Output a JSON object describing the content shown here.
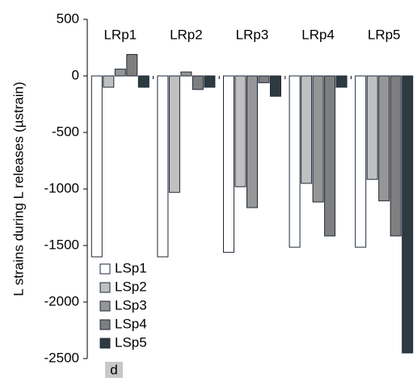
{
  "chart_data": {
    "type": "bar",
    "y_label": "L strains during L releases (µstrain)",
    "annotation": "d",
    "categories": [
      "LRp1",
      "LRp2",
      "LRp3",
      "LRp4",
      "LRp5"
    ],
    "series": [
      {
        "name": "LSp1",
        "color": "#ffffff",
        "values": [
          -1600,
          -1600,
          -1560,
          -1515,
          -1515
        ]
      },
      {
        "name": "LSp2",
        "color": "#c0c0c0",
        "values": [
          -100,
          -1030,
          -980,
          -950,
          -915
        ]
      },
      {
        "name": "LSp3",
        "color": "#969696",
        "values": [
          60,
          35,
          -1165,
          -1115,
          -1105
        ]
      },
      {
        "name": "LSp4",
        "color": "#7f7f7f",
        "values": [
          190,
          -120,
          -60,
          -1415,
          -1415
        ]
      },
      {
        "name": "LSp5",
        "color": "#2d3a40",
        "values": [
          -100,
          -100,
          -180,
          -100,
          -2450
        ]
      }
    ],
    "ylim": [
      -2500,
      500
    ],
    "yticks": [
      -2500,
      -2000,
      -1500,
      -1000,
      -500,
      0,
      500
    ],
    "legend": "lower-left"
  }
}
